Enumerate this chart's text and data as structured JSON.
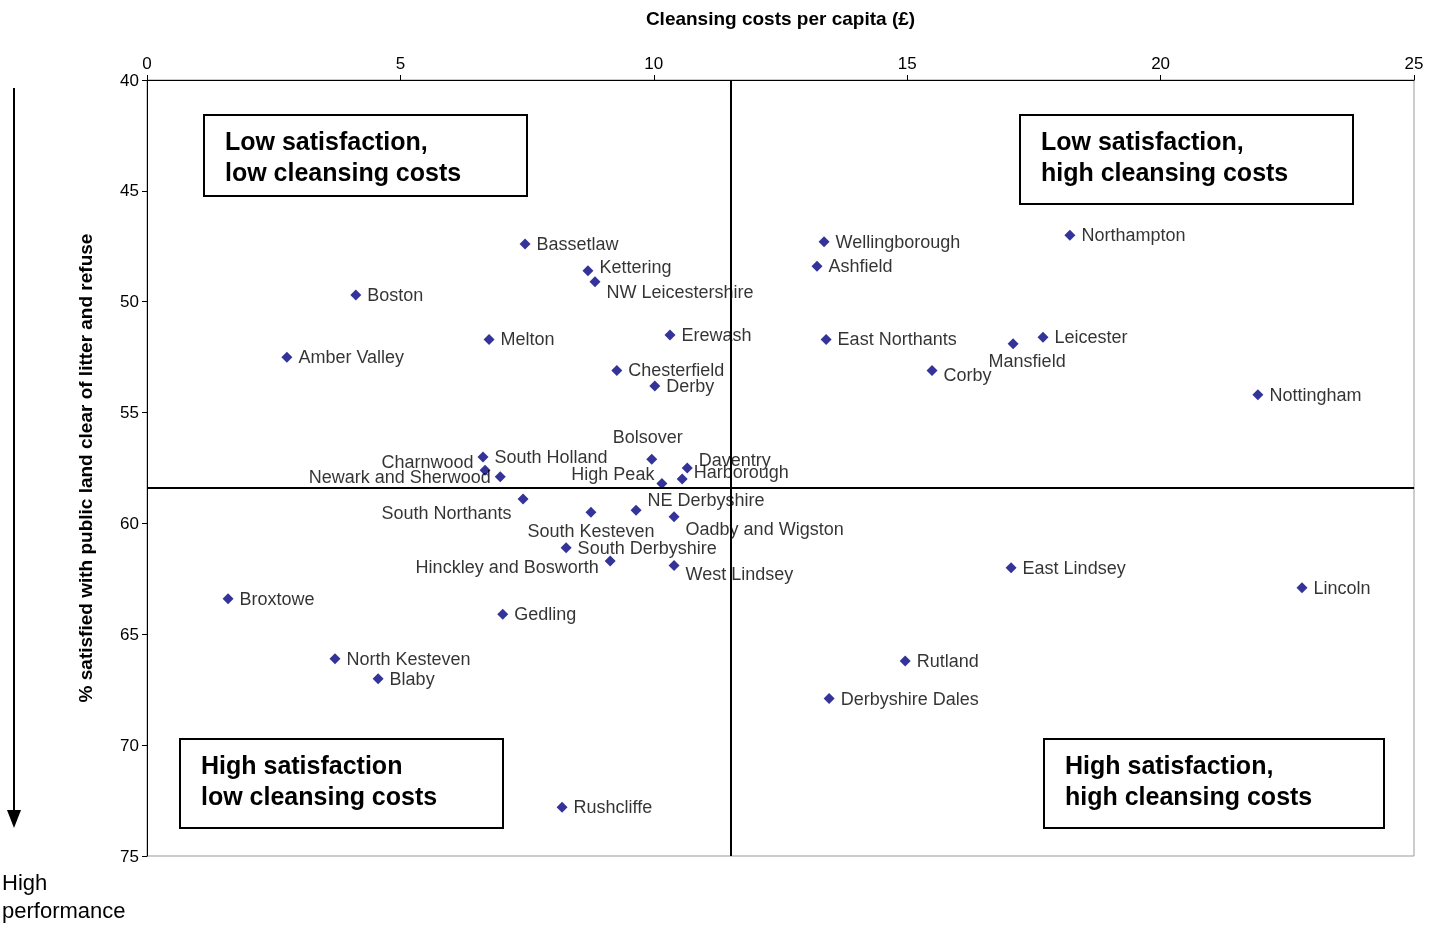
{
  "chart_data": {
    "type": "scatter",
    "xlabel": "Cleansing costs per capita (£)",
    "ylabel": "% satisfied with public land clear of litter and refuse",
    "xlim": [
      0,
      25
    ],
    "xticks": [
      0,
      5,
      10,
      15,
      20,
      25
    ],
    "ylim": [
      75,
      40
    ],
    "yticks": [
      40,
      45,
      50,
      55,
      60,
      65,
      70,
      75
    ],
    "grid": false,
    "legend": false,
    "marker": "diamond",
    "series": [
      {
        "name": "Bassetlaw",
        "color": "#000080",
        "x": [
          7.46
        ],
        "values": [
          47.4
        ]
      },
      {
        "name": "Kettering",
        "color": "#000080",
        "x": [
          8.7
        ],
        "values": [
          48.6
        ]
      },
      {
        "name": "NW Leicestershire",
        "color": "#000080",
        "x": [
          8.84
        ],
        "values": [
          49.1
        ]
      },
      {
        "name": "Boston",
        "color": "#000080",
        "x": [
          4.12
        ],
        "values": [
          49.7
        ]
      },
      {
        "name": "Melton",
        "color": "#000080",
        "x": [
          6.75
        ],
        "values": [
          51.7
        ]
      },
      {
        "name": "Amber Valley",
        "color": "#000080",
        "x": [
          2.76
        ],
        "values": [
          52.5
        ]
      },
      {
        "name": "Erewash",
        "color": "#000080",
        "x": [
          10.32
        ],
        "values": [
          51.5
        ]
      },
      {
        "name": "Chesterfield",
        "color": "#000080",
        "x": [
          9.27
        ],
        "values": [
          53.1
        ]
      },
      {
        "name": "Derby",
        "color": "#000080",
        "x": [
          10.02
        ],
        "values": [
          53.8
        ]
      },
      {
        "name": "Wellingborough",
        "color": "#000080",
        "x": [
          13.36
        ],
        "values": [
          47.3
        ]
      },
      {
        "name": "Ashfield",
        "color": "#000080",
        "x": [
          13.22
        ],
        "values": [
          48.4
        ]
      },
      {
        "name": "Northampton",
        "color": "#000080",
        "x": [
          18.21
        ],
        "values": [
          47.0
        ]
      },
      {
        "name": "East Northants",
        "color": "#000080",
        "x": [
          13.4
        ],
        "values": [
          51.7
        ]
      },
      {
        "name": "Mansfield",
        "color": "#000080",
        "x": [
          17.09
        ],
        "values": [
          51.9
        ]
      },
      {
        "name": "Leicester",
        "color": "#000080",
        "x": [
          17.68
        ],
        "values": [
          51.6
        ]
      },
      {
        "name": "Corby",
        "color": "#000080",
        "x": [
          15.49
        ],
        "values": [
          53.1
        ]
      },
      {
        "name": "Nottingham",
        "color": "#000080",
        "x": [
          21.92
        ],
        "values": [
          54.2
        ]
      },
      {
        "name": "South Holland",
        "color": "#000080",
        "x": [
          6.63
        ],
        "values": [
          57.0
        ]
      },
      {
        "name": "Charnwood",
        "color": "#000080",
        "x": [
          6.67
        ],
        "values": [
          57.6
        ]
      },
      {
        "name": "Newark and Sherwood",
        "color": "#000080",
        "x": [
          6.97
        ],
        "values": [
          57.9
        ]
      },
      {
        "name": "Bolsover",
        "color": "#000080",
        "x": [
          9.96
        ],
        "values": [
          57.1
        ]
      },
      {
        "name": "Daventry",
        "color": "#000080",
        "x": [
          10.66
        ],
        "values": [
          57.5
        ]
      },
      {
        "name": "High Peak",
        "color": "#000080",
        "x": [
          10.16
        ],
        "values": [
          58.2
        ]
      },
      {
        "name": "Harborough",
        "color": "#000080",
        "x": [
          10.56
        ],
        "values": [
          58.0
        ]
      },
      {
        "name": "South Northants",
        "color": "#000080",
        "x": [
          7.42
        ],
        "values": [
          58.9
        ]
      },
      {
        "name": "NE Derbyshire",
        "color": "#000080",
        "x": [
          9.65
        ],
        "values": [
          59.4
        ]
      },
      {
        "name": "South Kesteven",
        "color": "#000080",
        "x": [
          8.76
        ],
        "values": [
          59.5
        ]
      },
      {
        "name": "Oadby and Wigston",
        "color": "#000080",
        "x": [
          10.4
        ],
        "values": [
          59.7
        ]
      },
      {
        "name": "South Derbyshire",
        "color": "#000080",
        "x": [
          8.27
        ],
        "values": [
          61.1
        ]
      },
      {
        "name": "Hinckley and Bosworth",
        "color": "#000080",
        "x": [
          9.14
        ],
        "values": [
          61.7
        ]
      },
      {
        "name": "West Lindsey",
        "color": "#000080",
        "x": [
          10.4
        ],
        "values": [
          61.9
        ]
      },
      {
        "name": "East Lindsey",
        "color": "#000080",
        "x": [
          17.05
        ],
        "values": [
          62.0
        ]
      },
      {
        "name": "Lincoln",
        "color": "#000080",
        "x": [
          22.79
        ],
        "values": [
          62.9
        ]
      },
      {
        "name": "Broxtowe",
        "color": "#000080",
        "x": [
          1.6
        ],
        "values": [
          63.4
        ]
      },
      {
        "name": "Gedling",
        "color": "#000080",
        "x": [
          7.02
        ],
        "values": [
          64.1
        ]
      },
      {
        "name": "North Kesteven",
        "color": "#000080",
        "x": [
          3.71
        ],
        "values": [
          66.1
        ]
      },
      {
        "name": "Blaby",
        "color": "#000080",
        "x": [
          4.56
        ],
        "values": [
          67.0
        ]
      },
      {
        "name": "Rutland",
        "color": "#000080",
        "x": [
          14.96
        ],
        "values": [
          66.2
        ]
      },
      {
        "name": "Derbyshire Dales",
        "color": "#000080",
        "x": [
          13.46
        ],
        "values": [
          67.9
        ]
      },
      {
        "name": "Rushcliffe",
        "color": "#000080",
        "x": [
          8.19
        ],
        "values": [
          72.8
        ]
      }
    ],
    "ref_lines": [
      {
        "axis": "x",
        "value": 11.52
      },
      {
        "axis": "y",
        "value": 58.4
      }
    ],
    "annotations": [
      "Low satisfaction,\nlow cleansing costs",
      "Low satisfaction,\nhigh cleansing costs",
      "High satisfaction\nlow cleansing costs",
      "High satisfaction,\nhigh cleansing costs",
      "High\nperformance"
    ]
  }
}
